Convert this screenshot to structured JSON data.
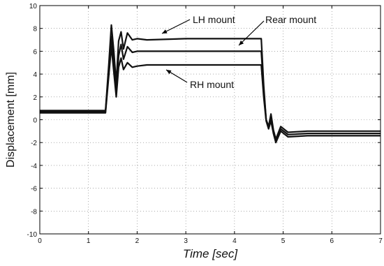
{
  "chart_data": {
    "type": "line",
    "xlabel": "Time [sec]",
    "ylabel": "Displacement [mm]",
    "xlim": [
      0,
      7
    ],
    "ylim": [
      -10,
      10
    ],
    "xticks": [
      "0",
      "1",
      "2",
      "3",
      "4",
      "5",
      "6",
      "7"
    ],
    "yticks": [
      "10",
      "8",
      "6",
      "4",
      "2",
      "0",
      "-2",
      "-4",
      "-6",
      "-8",
      "-10"
    ],
    "grid": true,
    "annotations": [
      {
        "text": "LH mount"
      },
      {
        "text": "Rear mount"
      },
      {
        "text": "RH mount"
      }
    ],
    "series": [
      {
        "name": "LH mount",
        "x": [
          0,
          1.35,
          1.42,
          1.47,
          1.52,
          1.57,
          1.62,
          1.67,
          1.72,
          1.8,
          1.9,
          2.0,
          2.2,
          3.0,
          4.0,
          4.55,
          4.6,
          4.65,
          4.7,
          4.75,
          4.8,
          4.85,
          4.95,
          5.1,
          5.5,
          7.0
        ],
        "y": [
          0.8,
          0.8,
          5.0,
          8.3,
          6.0,
          3.2,
          6.9,
          7.7,
          6.2,
          7.6,
          7.0,
          7.1,
          7.0,
          7.1,
          7.1,
          7.1,
          3.0,
          0.0,
          -0.6,
          0.5,
          -0.9,
          -1.7,
          -0.6,
          -1.1,
          -1.0,
          -1.0
        ]
      },
      {
        "name": "Rear mount",
        "x": [
          0,
          1.35,
          1.42,
          1.47,
          1.52,
          1.57,
          1.62,
          1.67,
          1.72,
          1.8,
          1.9,
          2.0,
          2.2,
          3.0,
          4.0,
          4.55,
          4.6,
          4.65,
          4.7,
          4.75,
          4.8,
          4.85,
          4.95,
          5.1,
          5.5,
          7.0
        ],
        "y": [
          0.7,
          0.7,
          4.5,
          7.3,
          5.0,
          2.4,
          5.6,
          6.6,
          5.3,
          6.4,
          5.9,
          6.0,
          6.0,
          6.0,
          6.0,
          6.0,
          2.6,
          0.0,
          -0.6,
          0.2,
          -1.0,
          -1.9,
          -0.8,
          -1.3,
          -1.2,
          -1.2
        ]
      },
      {
        "name": "RH mount",
        "x": [
          0,
          1.35,
          1.42,
          1.47,
          1.52,
          1.57,
          1.62,
          1.67,
          1.72,
          1.8,
          1.9,
          2.0,
          2.2,
          3.0,
          4.0,
          4.55,
          4.6,
          4.65,
          4.7,
          4.75,
          4.8,
          4.85,
          4.95,
          5.1,
          5.5,
          7.0
        ],
        "y": [
          0.6,
          0.6,
          4.0,
          6.4,
          4.2,
          2.0,
          4.6,
          5.4,
          4.4,
          5.0,
          4.6,
          4.7,
          4.8,
          4.8,
          4.8,
          4.8,
          2.0,
          -0.1,
          -0.8,
          -0.1,
          -1.2,
          -2.0,
          -1.0,
          -1.5,
          -1.4,
          -1.4
        ]
      }
    ]
  }
}
